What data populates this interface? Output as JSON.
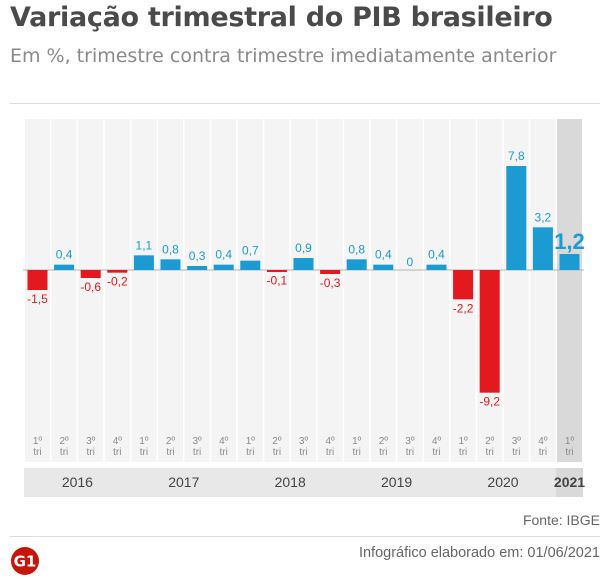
{
  "header": {
    "title": "Variação trimestral do PIB brasileiro",
    "subtitle": "Em %, trimestre contra trimestre imediatamente anterior"
  },
  "footer": {
    "source": "Fonte: IBGE",
    "credit": "Infográfico elaborado em: 01/06/2021",
    "logo_text": "G1"
  },
  "colors": {
    "positive": "#1b9bd1",
    "negative": "#e2191e",
    "highlight_column": "#d9d9d9",
    "year_band": "#e8e8e8",
    "brand": "#c4170c"
  },
  "chart_data": {
    "type": "bar",
    "categories": [
      "1º tri 2016",
      "2º tri 2016",
      "3º tri 2016",
      "4º tri 2016",
      "1º tri 2017",
      "2º tri 2017",
      "3º tri 2017",
      "4º tri 2017",
      "1º tri 2018",
      "2º tri 2018",
      "3º tri 2018",
      "4º tri 2018",
      "1º tri 2019",
      "2º tri 2019",
      "3º tri 2019",
      "4º tri 2019",
      "1º tri 2020",
      "2º tri 2020",
      "3º tri 2020",
      "4º tri 2020",
      "1º tri 2021"
    ],
    "quarter_labels": [
      [
        "1º",
        "tri"
      ],
      [
        "2º",
        "tri"
      ],
      [
        "3º",
        "tri"
      ],
      [
        "4º",
        "tri"
      ],
      [
        "1º",
        "tri"
      ],
      [
        "2º",
        "tri"
      ],
      [
        "3º",
        "tri"
      ],
      [
        "4º",
        "tri"
      ],
      [
        "1º",
        "tri"
      ],
      [
        "2º",
        "tri"
      ],
      [
        "3º",
        "tri"
      ],
      [
        "4º",
        "tri"
      ],
      [
        "1º",
        "tri"
      ],
      [
        "2º",
        "tri"
      ],
      [
        "3º",
        "tri"
      ],
      [
        "4º",
        "tri"
      ],
      [
        "1º",
        "tri"
      ],
      [
        "2º",
        "tri"
      ],
      [
        "3º",
        "tri"
      ],
      [
        "4º",
        "tri"
      ],
      [
        "1º",
        "tri"
      ]
    ],
    "values": [
      -1.5,
      0.4,
      -0.6,
      -0.2,
      1.1,
      0.8,
      0.3,
      0.4,
      0.7,
      -0.1,
      0.9,
      -0.3,
      0.8,
      0.4,
      0,
      0.4,
      -2.2,
      -9.2,
      7.8,
      3.2,
      1.2
    ],
    "value_labels": [
      "-1,5",
      "0,4",
      "-0,6",
      "-0,2",
      "1,1",
      "0,8",
      "0,3",
      "0,4",
      "0,7",
      "-0,1",
      "0,9",
      "-0,3",
      "0,8",
      "0,4",
      "0",
      "0,4",
      "-2,2",
      "-9,2",
      "7,8",
      "3,2",
      "1,2"
    ],
    "years": [
      {
        "label": "2016",
        "quarters": 4
      },
      {
        "label": "2017",
        "quarters": 4
      },
      {
        "label": "2018",
        "quarters": 4
      },
      {
        "label": "2019",
        "quarters": 4
      },
      {
        "label": "2020",
        "quarters": 4
      },
      {
        "label": "2021",
        "quarters": 1
      }
    ],
    "highlight_index": 20,
    "ylim": [
      -9.2,
      7.8
    ]
  }
}
